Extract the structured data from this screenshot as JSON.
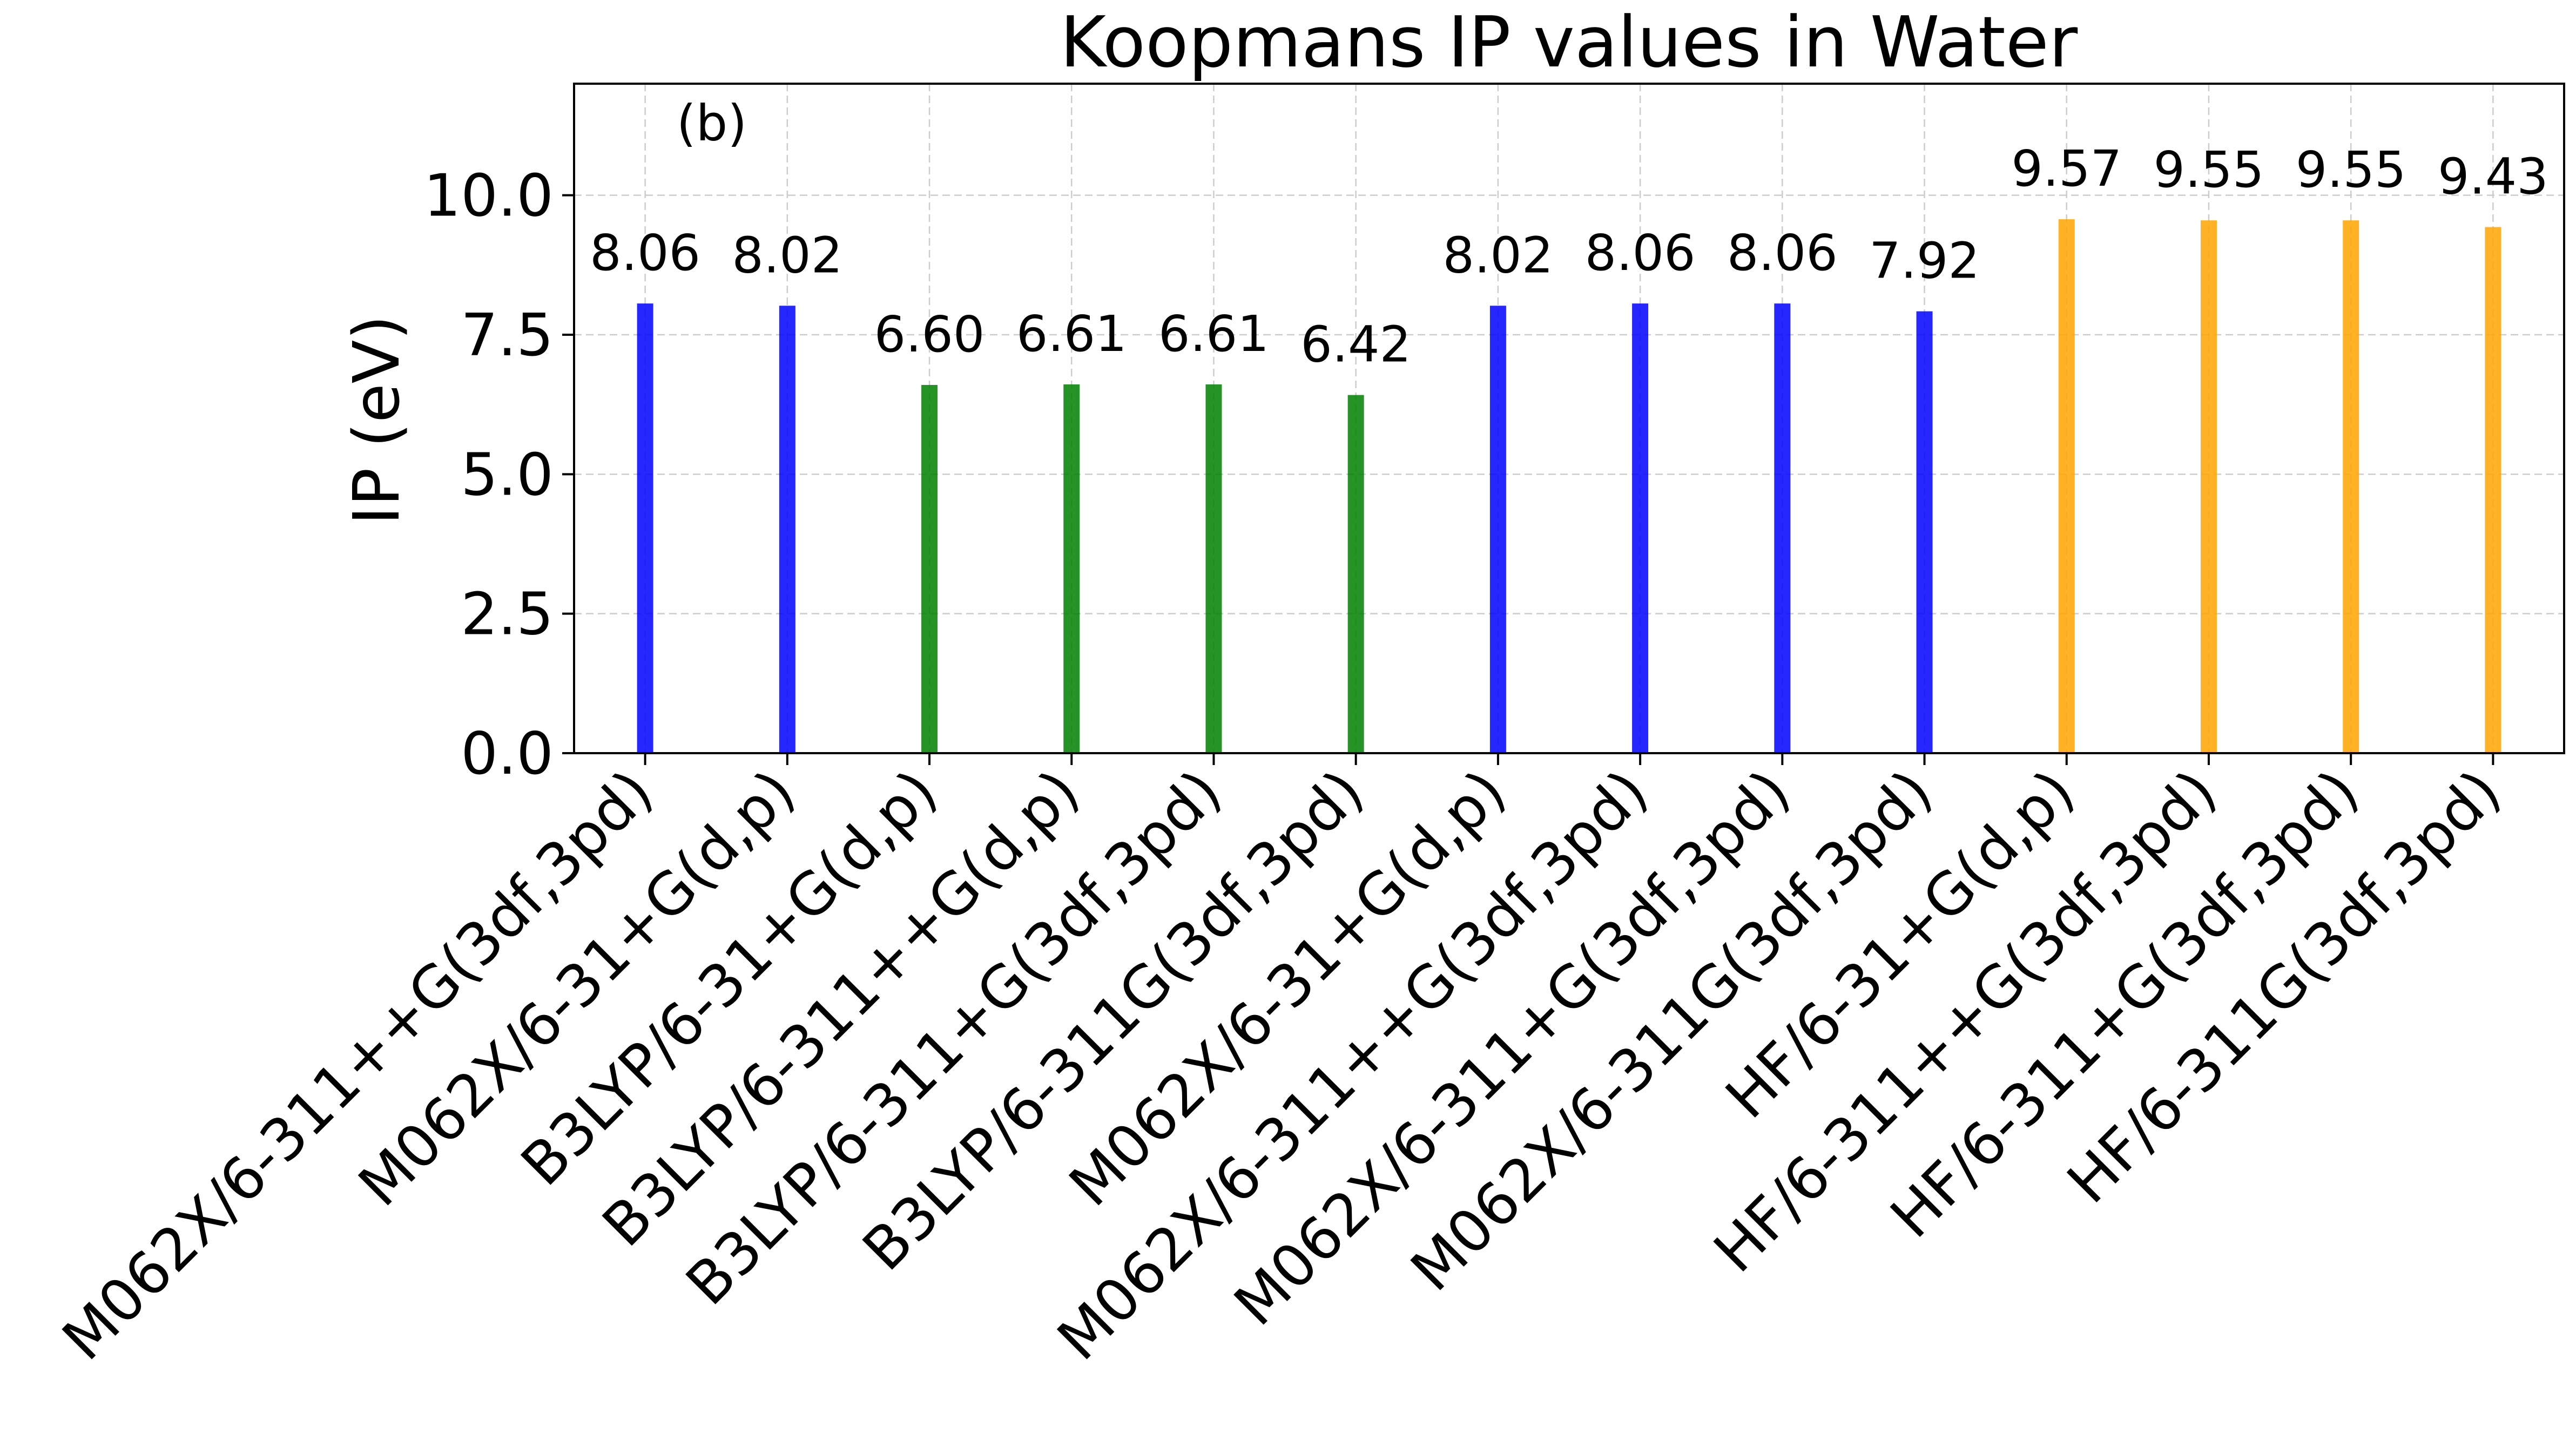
{
  "chart_data": {
    "type": "bar",
    "title": "Koopmans IP values in Water",
    "xlabel": "",
    "ylabel": "IP (eV)",
    "annotation": "(b)",
    "ylim": [
      0,
      12
    ],
    "yticks": [
      0.0,
      2.5,
      5.0,
      7.5,
      10.0
    ],
    "ytick_labels": [
      "0.0",
      "2.5",
      "5.0",
      "7.5",
      "10.0"
    ],
    "grid": true,
    "categories": [
      "M062X/6-311++G(3df,3pd)",
      "M062X/6-31+G(d,p)",
      "B3LYP/6-31+G(d,p)",
      "B3LYP/6-311++G(d,p)",
      "B3LYP/6-311+G(3df,3pd)",
      "B3LYP/6-311G(3df,3pd)",
      "M062X/6-31+G(d,p)",
      "M062X/6-311++G(3df,3pd)",
      "M062X/6-311+G(3df,3pd)",
      "M062X/6-311G(3df,3pd)",
      "HF/6-31+G(d,p)",
      "HF/6-311++G(3df,3pd)",
      "HF/6-311+G(3df,3pd)",
      "HF/6-311G(3df,3pd)"
    ],
    "values": [
      8.06,
      8.02,
      6.6,
      6.61,
      6.61,
      6.42,
      8.02,
      8.06,
      8.06,
      7.92,
      9.57,
      9.55,
      9.55,
      9.43
    ],
    "value_labels": [
      "8.06",
      "8.02",
      "6.60",
      "6.61",
      "6.61",
      "6.42",
      "8.02",
      "8.06",
      "8.06",
      "7.92",
      "9.57",
      "9.55",
      "9.55",
      "9.43"
    ],
    "bar_colors": [
      "#0000ff",
      "#0000ff",
      "#008000",
      "#008000",
      "#008000",
      "#008000",
      "#0000ff",
      "#0000ff",
      "#0000ff",
      "#0000ff",
      "#ffa500",
      "#ffa500",
      "#ffa500",
      "#ffa500"
    ]
  }
}
